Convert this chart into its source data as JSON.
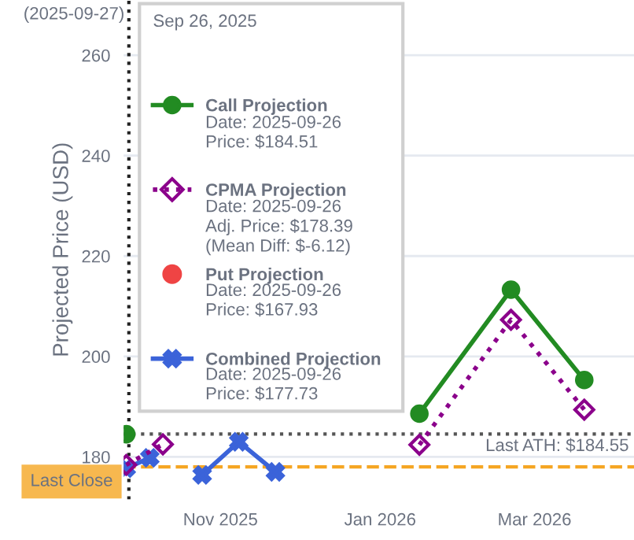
{
  "chart_data": {
    "type": "line",
    "ylabel": "Projected Price (USD)",
    "xlim": [
      "2025-09-25",
      "2026-04-08"
    ],
    "xticks": [
      {
        "value": "2025-11-01",
        "label": "Nov 2025"
      },
      {
        "value": "2026-01-01",
        "label": "Jan 2026"
      },
      {
        "value": "2026-03-01",
        "label": "Mar 2026"
      }
    ],
    "ylim": [
      171.5,
      271
    ],
    "yticks": [
      180,
      200,
      220,
      240,
      260
    ],
    "grid": "y",
    "legend": "top left",
    "legend_title": "Sep 26, 2025",
    "series": [
      {
        "name": "Call Projection",
        "color": "#228b22",
        "marker": "circle",
        "line_style": "solid",
        "x": [
          "2025-09-26",
          "2025-11-21",
          "2026-01-16",
          "2026-02-20",
          "2026-03-20"
        ],
        "values": [
          184.51,
          null,
          188.6,
          213.3,
          195.3
        ]
      },
      {
        "name": "CPMA Projection",
        "color": "#8b008b",
        "marker": "diamond",
        "line_style": "dotted",
        "x": [
          "2025-09-26",
          "2025-10-10",
          "2025-11-21",
          "2026-01-16",
          "2026-02-20",
          "2026-03-20"
        ],
        "values": [
          178.39,
          182.5,
          null,
          182.4,
          207.3,
          189.4
        ]
      },
      {
        "name": "Put Projection",
        "type": "scatter",
        "color": "#ef4444",
        "marker": "circle",
        "values": [
          null
        ]
      },
      {
        "name": "Combined Projection",
        "color": "#3b63d9",
        "marker": "cross",
        "line_style": "solid",
        "x": [
          "2025-09-26",
          "2025-10-05",
          "2025-10-14",
          "2025-10-25",
          "2025-11-08",
          "2025-11-22"
        ],
        "values": [
          177.73,
          179.8,
          null,
          176.4,
          183,
          177
        ]
      }
    ],
    "ref_lines": [
      {
        "axis": "x",
        "value": "2025-09-27",
        "label": "(2025-09-27)",
        "color": "#222222",
        "line_style": "dotted"
      },
      {
        "axis": "y",
        "value": 184.55,
        "label": "Last ATH: $184.55",
        "color": "#555555",
        "line_style": "dotted"
      },
      {
        "axis": "y",
        "value": 178,
        "label": "Last Close",
        "color": "#f5a623",
        "line_style": "dashed"
      }
    ],
    "annotations": [
      "Date: 2025-09-26\nPrice: $184.51",
      "Date: 2025-09-26\nAdj. Price: $178.39\n(Mean Diff: $-6.12)",
      "Date: 2025-09-26\nPrice: $167.93",
      "Date: 2025-09-26\nPrice: $177.73"
    ]
  }
}
